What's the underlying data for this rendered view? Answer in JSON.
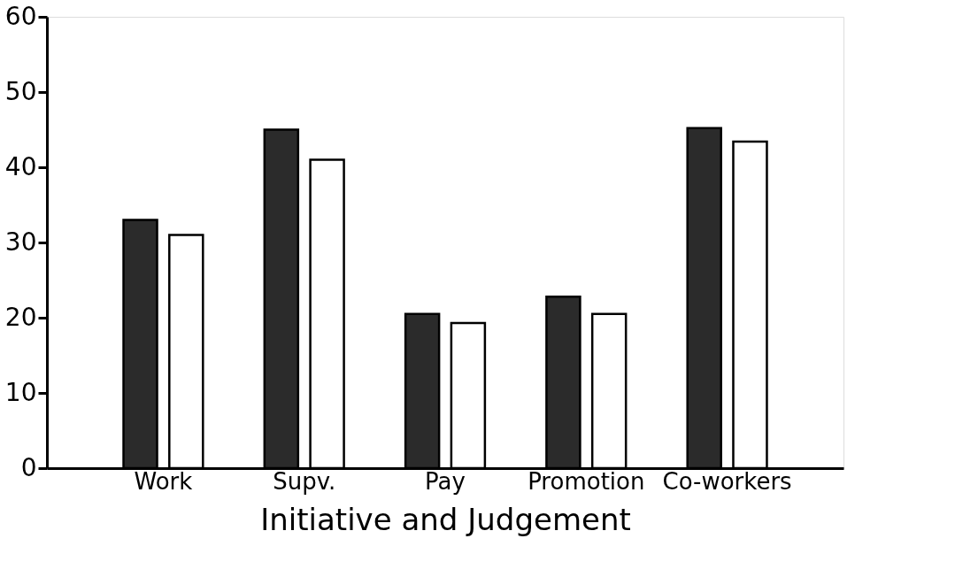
{
  "chart_data": {
    "type": "bar",
    "xlabel": "Initiative and Judgement",
    "categories": [
      "Work",
      "Supv.",
      "Pay",
      "Promotion",
      "Co-workers"
    ],
    "series": [
      {
        "color": "#2b2b2b",
        "values": [
          33,
          45,
          20.5,
          22.8,
          45.2
        ]
      },
      {
        "color": "#ffffff",
        "values": [
          31,
          41,
          19.3,
          20.5,
          43.4
        ]
      }
    ],
    "ylim": [
      0,
      60
    ],
    "yticks": [
      0,
      10,
      20,
      30,
      40,
      50,
      60
    ],
    "grid": false,
    "legend": false
  }
}
